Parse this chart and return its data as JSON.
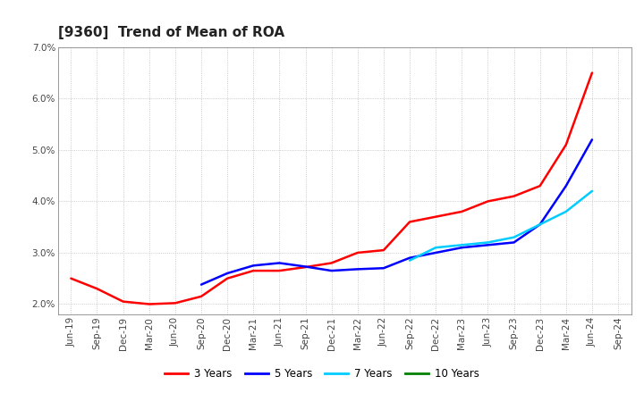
{
  "title": "[9360]  Trend of Mean of ROA",
  "ylim": [
    1.8,
    7.0
  ],
  "yticks": [
    2.0,
    3.0,
    4.0,
    5.0,
    6.0,
    7.0
  ],
  "ytick_labels": [
    "2.0%",
    "3.0%",
    "4.0%",
    "5.0%",
    "6.0%",
    "7.0%"
  ],
  "x_labels": [
    "Jun-19",
    "Sep-19",
    "Dec-19",
    "Mar-20",
    "Jun-20",
    "Sep-20",
    "Dec-20",
    "Mar-21",
    "Jun-21",
    "Sep-21",
    "Dec-21",
    "Mar-22",
    "Jun-22",
    "Sep-22",
    "Dec-22",
    "Mar-23",
    "Jun-23",
    "Sep-23",
    "Dec-23",
    "Mar-24",
    "Jun-24",
    "Sep-24"
  ],
  "series": {
    "3 Years": {
      "color": "#FF0000",
      "data": [
        2.5,
        2.3,
        2.05,
        2.0,
        2.02,
        2.15,
        2.5,
        2.65,
        2.65,
        2.72,
        2.8,
        3.0,
        3.05,
        3.6,
        3.7,
        3.8,
        4.0,
        4.1,
        4.3,
        5.1,
        6.5,
        null
      ]
    },
    "5 Years": {
      "color": "#0000FF",
      "data": [
        null,
        null,
        null,
        null,
        null,
        2.38,
        2.6,
        2.75,
        2.8,
        2.73,
        2.65,
        2.68,
        2.7,
        2.9,
        3.0,
        3.1,
        3.15,
        3.2,
        3.55,
        4.3,
        5.2,
        null
      ]
    },
    "7 Years": {
      "color": "#00CCFF",
      "data": [
        null,
        null,
        null,
        null,
        null,
        null,
        null,
        null,
        null,
        null,
        null,
        null,
        null,
        2.85,
        3.1,
        3.15,
        3.2,
        3.3,
        3.55,
        3.8,
        4.2,
        null
      ]
    },
    "10 Years": {
      "color": "#008000",
      "data": [
        null,
        null,
        null,
        null,
        null,
        null,
        null,
        null,
        null,
        null,
        null,
        null,
        null,
        null,
        null,
        null,
        null,
        null,
        null,
        null,
        null,
        null
      ]
    }
  },
  "legend_order": [
    "3 Years",
    "5 Years",
    "7 Years",
    "10 Years"
  ],
  "background_color": "#FFFFFF",
  "plot_background": "#FFFFFF",
  "grid_color": "#BBBBBB",
  "title_fontsize": 11,
  "tick_fontsize": 7.5
}
